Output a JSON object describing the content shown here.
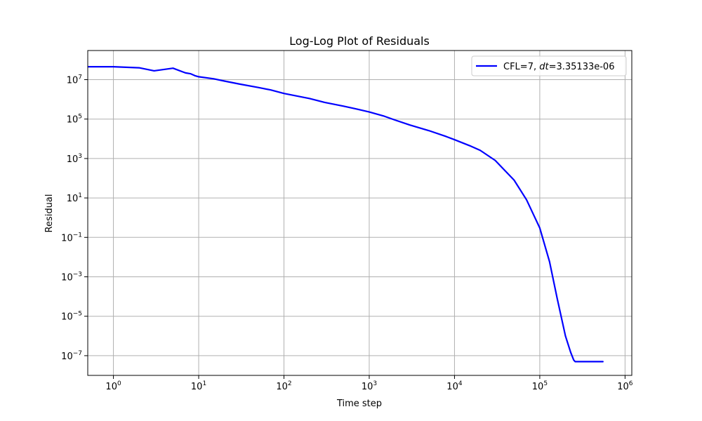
{
  "chart_data": {
    "type": "line",
    "title": "Log-Log Plot of Residuals",
    "xlabel": "Time step",
    "ylabel": "Residual",
    "xscale": "log",
    "yscale": "log",
    "xlim": [
      0.5,
      1200000
    ],
    "ylim": [
      1e-08,
      300000000.0
    ],
    "grid": true,
    "legend_placement": "top-right",
    "x_ticks": [
      {
        "value": 1,
        "base": "10",
        "exp": "0"
      },
      {
        "value": 10,
        "base": "10",
        "exp": "1"
      },
      {
        "value": 100,
        "base": "10",
        "exp": "2"
      },
      {
        "value": 1000,
        "base": "10",
        "exp": "3"
      },
      {
        "value": 10000,
        "base": "10",
        "exp": "4"
      },
      {
        "value": 100000,
        "base": "10",
        "exp": "5"
      },
      {
        "value": 1000000,
        "base": "10",
        "exp": "6"
      }
    ],
    "y_ticks": [
      {
        "value": 10000000.0,
        "base": "10",
        "exp": "7"
      },
      {
        "value": 100000.0,
        "base": "10",
        "exp": "5"
      },
      {
        "value": 1000.0,
        "base": "10",
        "exp": "3"
      },
      {
        "value": 10.0,
        "base": "10",
        "exp": "1"
      },
      {
        "value": 0.1,
        "base": "10",
        "exp": "−1"
      },
      {
        "value": 0.001,
        "base": "10",
        "exp": "−3"
      },
      {
        "value": 1e-05,
        "base": "10",
        "exp": "−5"
      },
      {
        "value": 1e-07,
        "base": "10",
        "exp": "−7"
      }
    ],
    "series": [
      {
        "name": "CFL=7, dt=3.35133e-06",
        "legend_parts": [
          "CFL=7, ",
          "dt",
          "=3.35133e-06"
        ],
        "color": "#0000ff",
        "x": [
          0.5,
          1,
          2,
          3,
          5,
          7,
          8,
          9,
          10,
          15,
          20,
          30,
          50,
          70,
          100,
          200,
          300,
          500,
          700,
          1000,
          1500,
          2000,
          3000,
          5000,
          8000,
          10000,
          15000,
          20000,
          30000,
          50000,
          70000,
          100000,
          130000,
          160000,
          200000,
          230000,
          250000,
          260000,
          270000,
          300000,
          400000,
          550000
        ],
        "y": [
          45000000,
          45000000,
          40000000,
          28000000,
          38000000,
          22000000,
          20000000,
          16000000,
          14000000,
          11000000,
          8500000,
          6000000,
          4000000,
          3000000,
          2000000,
          1100000,
          700000,
          450000,
          330000,
          230000,
          140000,
          90000,
          50000,
          26000,
          13000,
          9000,
          4500,
          2600,
          800,
          80,
          8,
          0.3,
          0.006,
          8e-05,
          1e-06,
          1.5e-07,
          6e-08,
          5e-08,
          5e-08,
          5e-08,
          5e-08,
          5e-08
        ]
      }
    ]
  }
}
